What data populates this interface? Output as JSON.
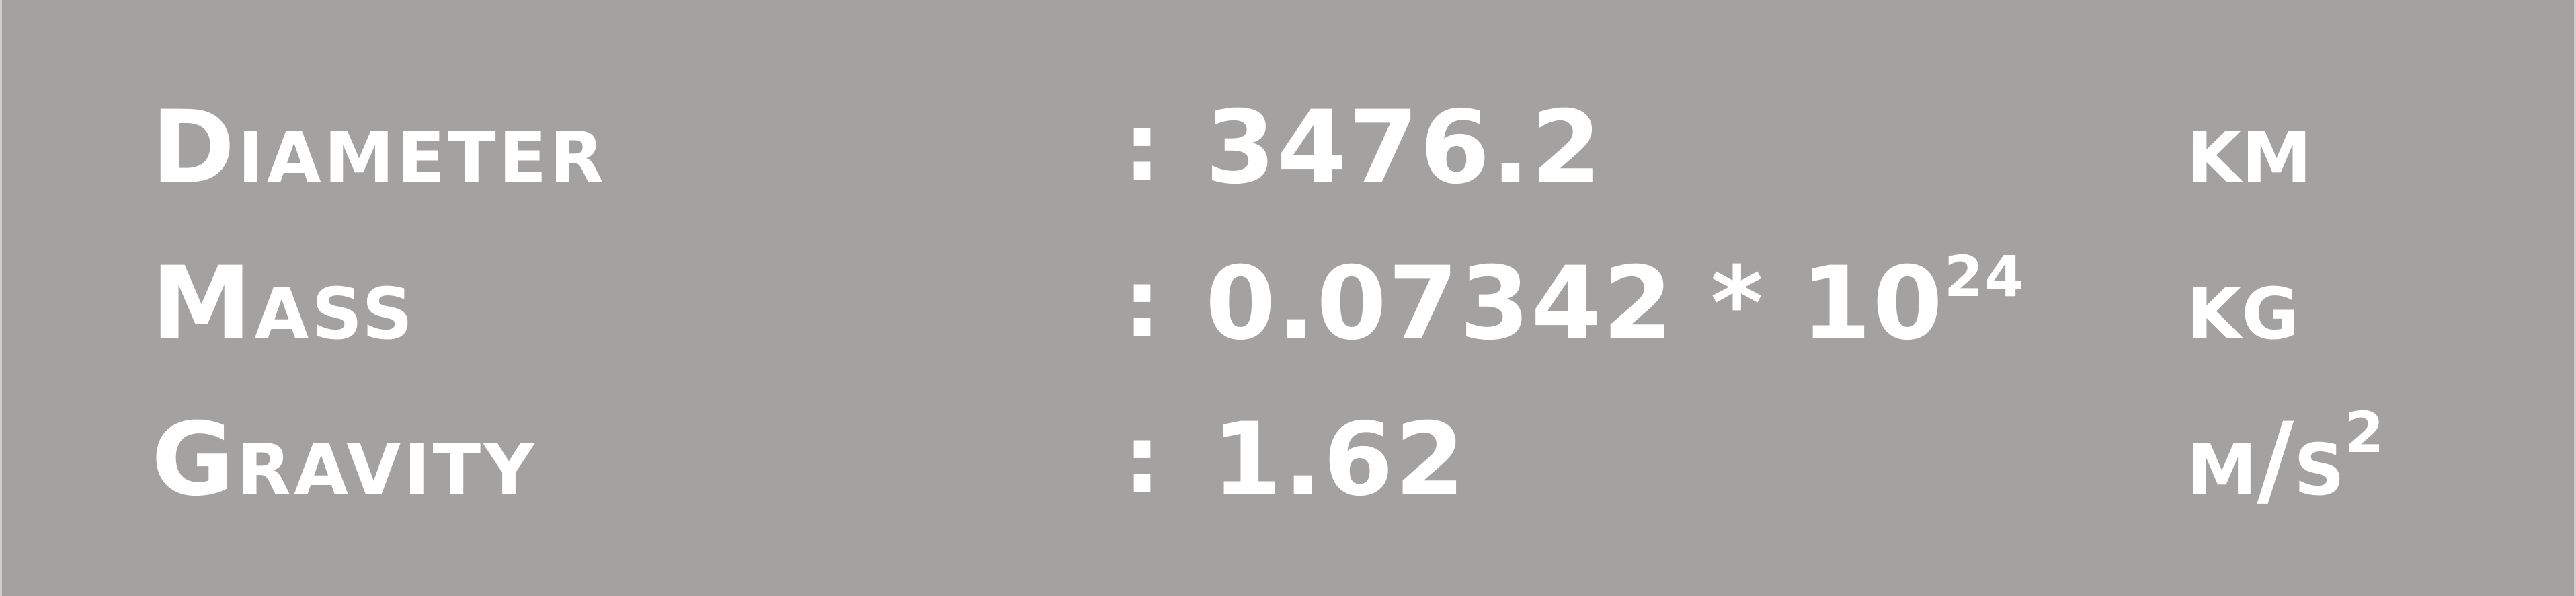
{
  "rows": [
    {
      "label": "Diameter",
      "colon": ":",
      "value": "3476.2",
      "exponent": "",
      "unit": "km",
      "unit_exponent": ""
    },
    {
      "label": "Mass",
      "colon": ":",
      "value": "0.07342 * 10",
      "exponent": "24",
      "unit": "kg",
      "unit_exponent": ""
    },
    {
      "label": "Gravity",
      "colon": ":",
      "value": "1.62",
      "exponent": "",
      "unit": "m/s",
      "unit_exponent": "2"
    }
  ]
}
